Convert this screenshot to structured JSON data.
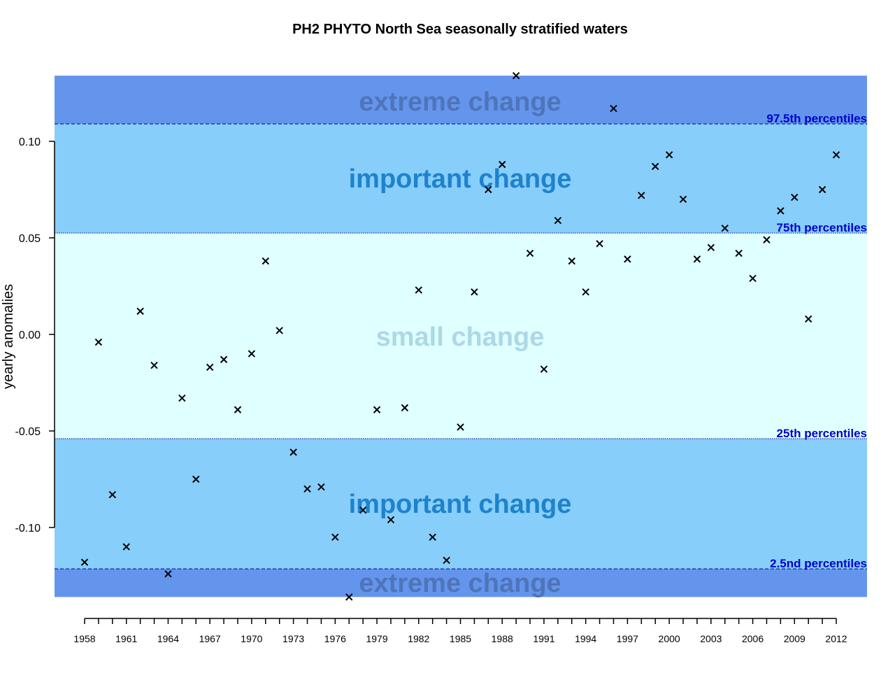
{
  "chart_data": {
    "type": "scatter",
    "title": "PH2 PHYTO North Sea seasonally stratified waters",
    "xlabel": "",
    "ylabel": "yearly anomalies",
    "xlim": [
      1958,
      2012
    ],
    "ylim": [
      -0.136,
      0.134
    ],
    "grid": false,
    "marker": "x",
    "x_tick_labels": [
      "1958",
      "1961",
      "1964",
      "1967",
      "1970",
      "1973",
      "1976",
      "1979",
      "1982",
      "1985",
      "1988",
      "1991",
      "1994",
      "1997",
      "2000",
      "2003",
      "2006",
      "2009",
      "2012"
    ],
    "y_ticks": [
      0.1,
      0.05,
      0.0,
      -0.05,
      -0.1
    ],
    "y_tick_labels": [
      "0.10",
      "0.05",
      "0.00",
      "-0.05",
      "-0.10"
    ],
    "x": [
      1958,
      1959,
      1960,
      1961,
      1962,
      1963,
      1964,
      1965,
      1966,
      1967,
      1968,
      1969,
      1970,
      1971,
      1972,
      1973,
      1974,
      1975,
      1976,
      1977,
      1978,
      1979,
      1980,
      1981,
      1982,
      1983,
      1984,
      1985,
      1986,
      1987,
      1988,
      1989,
      1990,
      1991,
      1992,
      1993,
      1994,
      1995,
      1996,
      1997,
      1998,
      1999,
      2000,
      2001,
      2002,
      2003,
      2004,
      2005,
      2006,
      2007,
      2008,
      2009,
      2010,
      2011,
      2012
    ],
    "values": [
      -0.118,
      -0.004,
      -0.083,
      -0.11,
      0.012,
      -0.016,
      -0.124,
      -0.033,
      -0.075,
      -0.017,
      -0.013,
      -0.039,
      -0.01,
      0.038,
      0.002,
      -0.061,
      -0.08,
      -0.079,
      -0.105,
      -0.136,
      -0.091,
      -0.039,
      -0.096,
      -0.038,
      0.023,
      -0.105,
      -0.117,
      -0.048,
      0.022,
      0.075,
      0.088,
      0.134,
      0.042,
      -0.018,
      0.059,
      0.038,
      0.022,
      0.047,
      0.117,
      0.039,
      0.072,
      0.087,
      0.093,
      0.07,
      0.039,
      0.045,
      0.055,
      0.042,
      0.029,
      0.049,
      0.064,
      0.071,
      0.008,
      0.075,
      0.093
    ],
    "thresholds": [
      {
        "name": "97.5th percentiles",
        "value": 0.109,
        "line": "dashed"
      },
      {
        "name": "75th percentiles",
        "value": 0.0525,
        "line": "dotted"
      },
      {
        "name": "25th percentiles",
        "value": -0.054,
        "line": "dotted"
      },
      {
        "name": "2.5nd percentiles",
        "value": -0.1214,
        "line": "dashed"
      }
    ],
    "bands": [
      {
        "label": "extreme change",
        "from": 0.109,
        "to": 0.134,
        "color": "#6495ed",
        "text_color": "#4f74b8"
      },
      {
        "label": "important change",
        "from": 0.0525,
        "to": 0.109,
        "color": "#87cefa",
        "text_color": "#1e82cc"
      },
      {
        "label": "small change",
        "from": -0.054,
        "to": 0.0525,
        "color": "#e0ffff",
        "text_color": "#add8e6"
      },
      {
        "label": "important change",
        "from": -0.1214,
        "to": -0.054,
        "color": "#87cefa",
        "text_color": "#1e82cc"
      },
      {
        "label": "extreme change",
        "from": -0.136,
        "to": -0.1214,
        "color": "#6495ed",
        "text_color": "#4f74b8"
      }
    ],
    "colors": {
      "threshold_line": "#00008b",
      "threshold_text": "#0000cd",
      "marker": "#000000"
    }
  }
}
